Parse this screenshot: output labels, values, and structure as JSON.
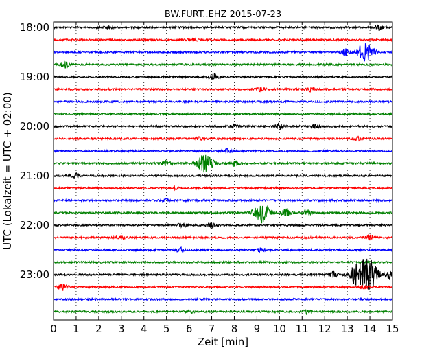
{
  "chart_data": {
    "type": "line",
    "title": "BW.FURT..EHZ 2015-07-23",
    "xlabel": "Zeit  [min]",
    "ylabel": "UTC (Lokalzeit = UTC + 02:00)",
    "xlim": [
      0,
      15
    ],
    "x_ticks": [
      "0",
      "1",
      "2",
      "3",
      "4",
      "5",
      "6",
      "7",
      "8",
      "9",
      "10",
      "11",
      "12",
      "13",
      "14",
      "15"
    ],
    "y_ticks": [
      "18:00",
      "19:00",
      "20:00",
      "21:00",
      "22:00",
      "23:00"
    ],
    "grid": "vertical dotted",
    "trace_colors": [
      "#000000",
      "#ff0000",
      "#0000ff",
      "#008000"
    ],
    "traces": [
      {
        "start": "18:00",
        "color": "#000000",
        "events": [
          {
            "t": 2.4,
            "amp": 3
          },
          {
            "t": 14.4,
            "amp": 4
          }
        ]
      },
      {
        "start": "18:15",
        "color": "#ff0000",
        "events": [
          {
            "t": 6.2,
            "amp": 2
          }
        ]
      },
      {
        "start": "18:30",
        "color": "#0000ff",
        "events": [
          {
            "t": 12.9,
            "amp": 5
          },
          {
            "t": 13.8,
            "amp": 13
          }
        ]
      },
      {
        "start": "18:45",
        "color": "#008000",
        "events": [
          {
            "t": 0.5,
            "amp": 4
          }
        ]
      },
      {
        "start": "19:00",
        "color": "#000000",
        "events": [
          {
            "t": 7.1,
            "amp": 4
          }
        ]
      },
      {
        "start": "19:15",
        "color": "#ff0000",
        "events": [
          {
            "t": 9.2,
            "amp": 3
          },
          {
            "t": 11.4,
            "amp": 3
          }
        ]
      },
      {
        "start": "19:30",
        "color": "#0000ff",
        "events": []
      },
      {
        "start": "19:45",
        "color": "#008000",
        "events": []
      },
      {
        "start": "20:00",
        "color": "#000000",
        "events": [
          {
            "t": 8.0,
            "amp": 3
          },
          {
            "t": 10.0,
            "amp": 4
          },
          {
            "t": 11.6,
            "amp": 3
          }
        ]
      },
      {
        "start": "20:15",
        "color": "#ff0000",
        "events": [
          {
            "t": 6.4,
            "amp": 2
          },
          {
            "t": 13.5,
            "amp": 3
          }
        ]
      },
      {
        "start": "20:30",
        "color": "#0000ff",
        "events": [
          {
            "t": 7.7,
            "amp": 3
          }
        ]
      },
      {
        "start": "20:45",
        "color": "#008000",
        "events": [
          {
            "t": 5.0,
            "amp": 4
          },
          {
            "t": 6.7,
            "amp": 13
          },
          {
            "t": 8.0,
            "amp": 4
          }
        ]
      },
      {
        "start": "21:00",
        "color": "#000000",
        "events": [
          {
            "t": 1.0,
            "amp": 3
          }
        ]
      },
      {
        "start": "21:15",
        "color": "#ff0000",
        "events": [
          {
            "t": 5.3,
            "amp": 3
          }
        ]
      },
      {
        "start": "21:30",
        "color": "#0000ff",
        "events": [
          {
            "t": 5.0,
            "amp": 3
          }
        ]
      },
      {
        "start": "21:45",
        "color": "#008000",
        "events": [
          {
            "t": 9.2,
            "amp": 14
          },
          {
            "t": 10.3,
            "amp": 6
          },
          {
            "t": 11.2,
            "amp": 4
          }
        ]
      },
      {
        "start": "22:00",
        "color": "#000000",
        "events": [
          {
            "t": 5.7,
            "amp": 3
          },
          {
            "t": 7.0,
            "amp": 3
          }
        ]
      },
      {
        "start": "22:15",
        "color": "#ff0000",
        "events": [
          {
            "t": 3.0,
            "amp": 3
          },
          {
            "t": 14.0,
            "amp": 3
          }
        ]
      },
      {
        "start": "22:30",
        "color": "#0000ff",
        "events": [
          {
            "t": 5.6,
            "amp": 3
          },
          {
            "t": 9.2,
            "amp": 3
          }
        ]
      },
      {
        "start": "22:45",
        "color": "#008000",
        "events": []
      },
      {
        "start": "23:00",
        "color": "#000000",
        "events": [
          {
            "t": 12.4,
            "amp": 4
          },
          {
            "t": 13.5,
            "amp": 18
          },
          {
            "t": 14.0,
            "amp": 20
          },
          {
            "t": 14.9,
            "amp": 6
          }
        ]
      },
      {
        "start": "23:15",
        "color": "#ff0000",
        "events": [
          {
            "t": 0.4,
            "amp": 6
          },
          {
            "t": 13.7,
            "amp": 4
          }
        ]
      },
      {
        "start": "23:30",
        "color": "#0000ff",
        "events": []
      },
      {
        "start": "23:45",
        "color": "#008000",
        "events": [
          {
            "t": 6.0,
            "amp": 2
          },
          {
            "t": 11.2,
            "amp": 3
          }
        ]
      }
    ]
  }
}
